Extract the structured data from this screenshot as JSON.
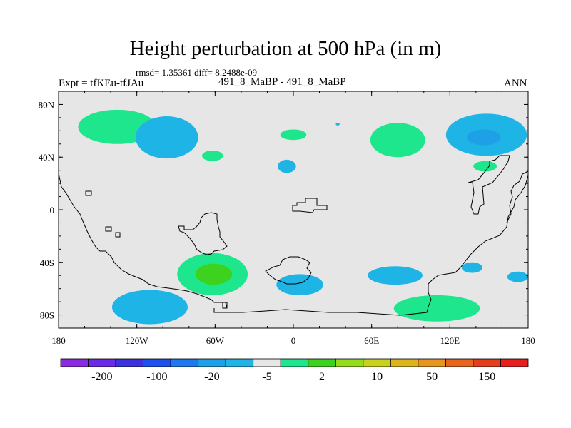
{
  "header": {
    "title": "Height perturbation at 500 hPa (in m)",
    "stats": "rmsd= 1.35361 diff= 8.2488e-09",
    "left_label": "Expt = tfKEu-tfJAu",
    "center_label": "491_8_MaBP - 491_8_MaBP",
    "right_label": "ANN"
  },
  "map": {
    "projection": "cylindrical equidistant",
    "lon_range": [
      -180,
      180
    ],
    "lat_range": [
      -90,
      90
    ],
    "background_color": "#e6e6e6",
    "coastline_color": "#000000",
    "x_tick_labels": [
      "180",
      "120W",
      "60W",
      "0",
      "60E",
      "120E",
      "180"
    ],
    "y_tick_labels": [
      "80N",
      "40N",
      "0",
      "40S",
      "80S"
    ]
  },
  "colorbar": {
    "colors": [
      "#8a2be2",
      "#6a2ae6",
      "#3c32dc",
      "#1e50f0",
      "#1e78f0",
      "#1ea0e6",
      "#1eb4e6",
      "#e6e6e6",
      "#1ee68c",
      "#3cd21e",
      "#96dc1e",
      "#c8d21e",
      "#dcb41e",
      "#e6961e",
      "#e6641e",
      "#e63c1e",
      "#e61e1e"
    ],
    "labels": [
      "-200",
      "-100",
      "-20",
      "-5",
      "2",
      "10",
      "50",
      "150"
    ]
  },
  "fields": [
    {
      "name": "cyan-north-pacific-blob",
      "lon": 148,
      "lat": 57,
      "rx_deg": 31,
      "ry_deg": 16,
      "level": -5,
      "color": "#1eb4e6"
    },
    {
      "name": "blue-north-pacific-core",
      "lon": 146,
      "lat": 55,
      "rx_deg": 13,
      "ry_deg": 6,
      "level": -20,
      "color": "#1ea0e6"
    },
    {
      "name": "green-north-pacific-blob",
      "lon": -135,
      "lat": 63,
      "rx_deg": 30,
      "ry_deg": 13,
      "level": 2,
      "color": "#1ee68c"
    },
    {
      "name": "cyan-canada-blob",
      "lon": -97,
      "lat": 55,
      "rx_deg": 24,
      "ry_deg": 16,
      "level": -5,
      "color": "#1eb4e6"
    },
    {
      "name": "green-north-atlantic-small",
      "lon": -62,
      "lat": 41,
      "rx_deg": 8,
      "ry_deg": 4,
      "level": 2,
      "color": "#1ee68c"
    },
    {
      "name": "green-europe-small",
      "lon": 0,
      "lat": 57,
      "rx_deg": 10,
      "ry_deg": 4,
      "level": 2,
      "color": "#1ee68c"
    },
    {
      "name": "cyan-mediterranean-small",
      "lon": -5,
      "lat": 33,
      "rx_deg": 7,
      "ry_deg": 5,
      "level": -5,
      "color": "#1eb4e6"
    },
    {
      "name": "green-siberia-blob",
      "lon": 80,
      "lat": 53,
      "rx_deg": 21,
      "ry_deg": 13,
      "level": 2,
      "color": "#1ee68c"
    },
    {
      "name": "green-japan-small",
      "lon": 147,
      "lat": 33,
      "rx_deg": 9,
      "ry_deg": 4,
      "level": 2,
      "color": "#1ee68c"
    },
    {
      "name": "green-south-america-blob",
      "lon": -62,
      "lat": -49,
      "rx_deg": 27,
      "ry_deg": 16,
      "level": 2,
      "color": "#1ee68c"
    },
    {
      "name": "lime-south-america-core",
      "lon": -61,
      "lat": -49,
      "rx_deg": 14,
      "ry_deg": 8,
      "level": 10,
      "color": "#3cd21e"
    },
    {
      "name": "cyan-south-pacific-blob",
      "lon": -110,
      "lat": -74,
      "rx_deg": 29,
      "ry_deg": 13,
      "level": -5,
      "color": "#1eb4e6"
    },
    {
      "name": "cyan-south-atlantic-blob",
      "lon": 5,
      "lat": -57,
      "rx_deg": 18,
      "ry_deg": 8,
      "level": -5,
      "color": "#1eb4e6"
    },
    {
      "name": "cyan-indian-ocean-blob",
      "lon": 78,
      "lat": -50,
      "rx_deg": 21,
      "ry_deg": 7,
      "level": -5,
      "color": "#1eb4e6"
    },
    {
      "name": "green-antarctic-indian-blob",
      "lon": 110,
      "lat": -75,
      "rx_deg": 33,
      "ry_deg": 10,
      "level": 2,
      "color": "#1ee68c"
    },
    {
      "name": "cyan-australia-small",
      "lon": 137,
      "lat": -44,
      "rx_deg": 8,
      "ry_deg": 4,
      "level": -5,
      "color": "#1eb4e6"
    },
    {
      "name": "cyan-new-zealand-small",
      "lon": 172,
      "lat": -51,
      "rx_deg": 8,
      "ry_deg": 4,
      "level": -5,
      "color": "#1eb4e6"
    },
    {
      "name": "cyan-barents-dot",
      "lon": 34,
      "lat": 65,
      "rx_deg": 1.5,
      "ry_deg": 1,
      "level": -5,
      "color": "#1eb4e6"
    }
  ]
}
